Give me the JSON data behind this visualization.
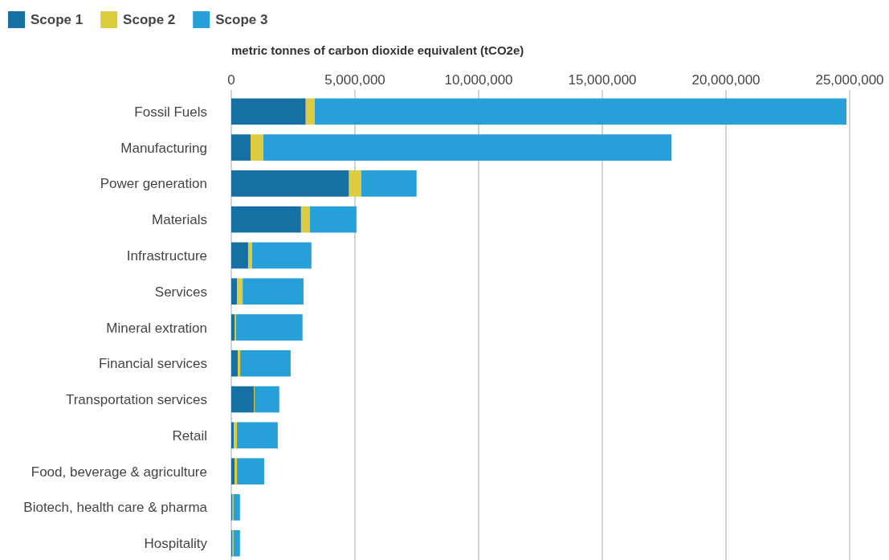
{
  "chart_data": {
    "type": "bar",
    "orientation": "horizontal",
    "stacked": true,
    "xlabel": "metric tonnes of carbon dioxide equivalent (tCO2e)",
    "categories": [
      "Fossil Fuels",
      "Manufacturing",
      "Power generation",
      "Materials",
      "Infrastructure",
      "Services",
      "Mineral extration",
      "Financial services",
      "Transportation services",
      "Retail",
      "Food, beverage & agriculture",
      "Biotech, health care & pharma",
      "Hospitality"
    ],
    "series": [
      {
        "name": "Scope 1",
        "color": "#1670a3",
        "values": [
          3010000,
          780000,
          4760000,
          2820000,
          680000,
          230000,
          130000,
          260000,
          910000,
          100000,
          130000,
          50000,
          50000
        ]
      },
      {
        "name": "Scope 2",
        "color": "#ddcc3f",
        "values": [
          360000,
          520000,
          490000,
          360000,
          160000,
          230000,
          60000,
          100000,
          30000,
          130000,
          100000,
          40000,
          40000
        ]
      },
      {
        "name": "Scope 3",
        "color": "#279fd8",
        "values": [
          21500000,
          16500000,
          2240000,
          1880000,
          2400000,
          2460000,
          2690000,
          2040000,
          1000000,
          1650000,
          1100000,
          260000,
          260000
        ]
      }
    ],
    "xlim": [
      0,
      25000000
    ],
    "xticks": [
      {
        "value": 0,
        "label": "0"
      },
      {
        "value": 5000000,
        "label": "5,000,000"
      },
      {
        "value": 10000000,
        "label": "10,000,000"
      },
      {
        "value": 15000000,
        "label": "15,000,000"
      },
      {
        "value": 20000000,
        "label": "20,000,000"
      },
      {
        "value": 25000000,
        "label": "25,000,000"
      }
    ],
    "grid": "x",
    "legend": "top left"
  }
}
